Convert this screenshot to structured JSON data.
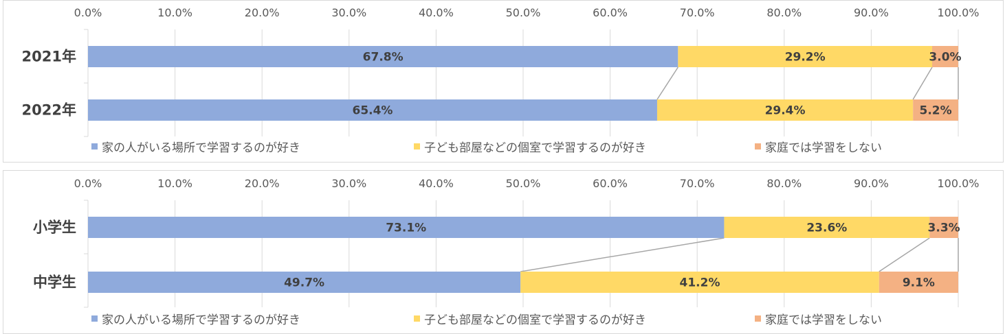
{
  "chart_data": [
    {
      "type": "bar",
      "stacked": true,
      "orientation": "horizontal",
      "categories": [
        "2021年",
        "2022年"
      ],
      "series": [
        {
          "name": "家の人がいる場所で学習するのが好き",
          "values": [
            67.8,
            65.4
          ],
          "labels": [
            "67.8%",
            "65.4%"
          ]
        },
        {
          "name": "子ども部屋などの個室で学習するのが好き",
          "values": [
            29.2,
            29.4
          ],
          "labels": [
            "29.2%",
            "29.4%"
          ]
        },
        {
          "name": "家庭では学習をしない",
          "values": [
            3.0,
            5.2
          ],
          "labels": [
            "3.0%",
            "5.2%"
          ]
        }
      ],
      "xlim": [
        0,
        100
      ],
      "xticks": [
        "0.0%",
        "10.0%",
        "20.0%",
        "30.0%",
        "40.0%",
        "50.0%",
        "60.0%",
        "70.0%",
        "80.0%",
        "90.0%",
        "100.0%"
      ],
      "grid": true,
      "series_lines": true,
      "legend": "bottom"
    },
    {
      "type": "bar",
      "stacked": true,
      "orientation": "horizontal",
      "categories": [
        "小学生",
        "中学生"
      ],
      "series": [
        {
          "name": "家の人がいる場所で学習するのが好き",
          "values": [
            73.1,
            49.7
          ],
          "labels": [
            "73.1%",
            "49.7%"
          ]
        },
        {
          "name": "子ども部屋などの個室で学習するのが好き",
          "values": [
            23.6,
            41.2
          ],
          "labels": [
            "23.6%",
            "41.2%"
          ]
        },
        {
          "name": "家庭では学習をしない",
          "values": [
            3.3,
            9.1
          ],
          "labels": [
            "3.3%",
            "9.1%"
          ]
        }
      ],
      "xlim": [
        0,
        100
      ],
      "xticks": [
        "0.0%",
        "10.0%",
        "20.0%",
        "30.0%",
        "40.0%",
        "50.0%",
        "60.0%",
        "70.0%",
        "80.0%",
        "90.0%",
        "100.0%"
      ],
      "grid": true,
      "series_lines": true,
      "legend": "bottom"
    }
  ],
  "colors": [
    "#8faadc",
    "#ffd966",
    "#f4b183"
  ]
}
